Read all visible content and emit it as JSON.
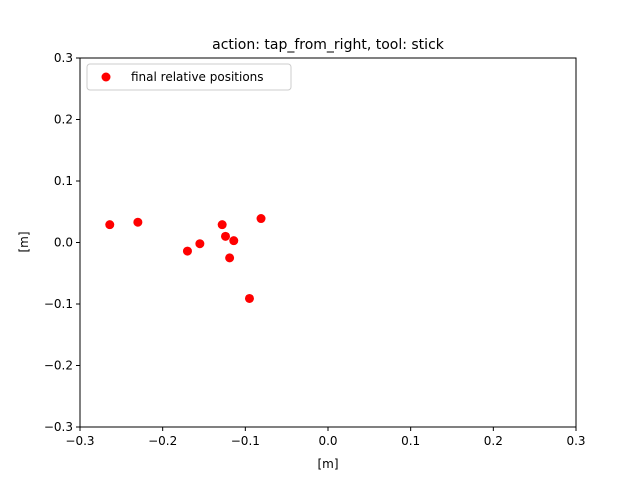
{
  "chart_data": {
    "type": "scatter",
    "title": "action: tap_from_right, tool: stick",
    "xlabel": "[m]",
    "ylabel": "[m]",
    "xlim": [
      -0.3,
      0.3
    ],
    "ylim": [
      -0.3,
      0.3
    ],
    "x_ticks": [
      "−0.3",
      "−0.2",
      "−0.1",
      "0.0",
      "0.1",
      "0.2",
      "0.3"
    ],
    "y_ticks": [
      "−0.3",
      "−0.2",
      "−0.1",
      "0.0",
      "0.1",
      "0.2",
      "0.3"
    ],
    "x_tick_values": [
      -0.3,
      -0.2,
      -0.1,
      0.0,
      0.1,
      0.2,
      0.3
    ],
    "y_tick_values": [
      -0.3,
      -0.2,
      -0.1,
      0.0,
      0.1,
      0.2,
      0.3
    ],
    "grid": false,
    "legend_position": "top-left",
    "series": [
      {
        "name": "final relative positions",
        "color": "#ff0000",
        "x": [
          -0.264,
          -0.23,
          -0.17,
          -0.155,
          -0.128,
          -0.124,
          -0.119,
          -0.114,
          -0.095,
          -0.081
        ],
        "y": [
          0.029,
          0.033,
          -0.014,
          -0.002,
          0.029,
          0.01,
          -0.025,
          0.003,
          -0.091,
          0.039
        ]
      }
    ]
  }
}
